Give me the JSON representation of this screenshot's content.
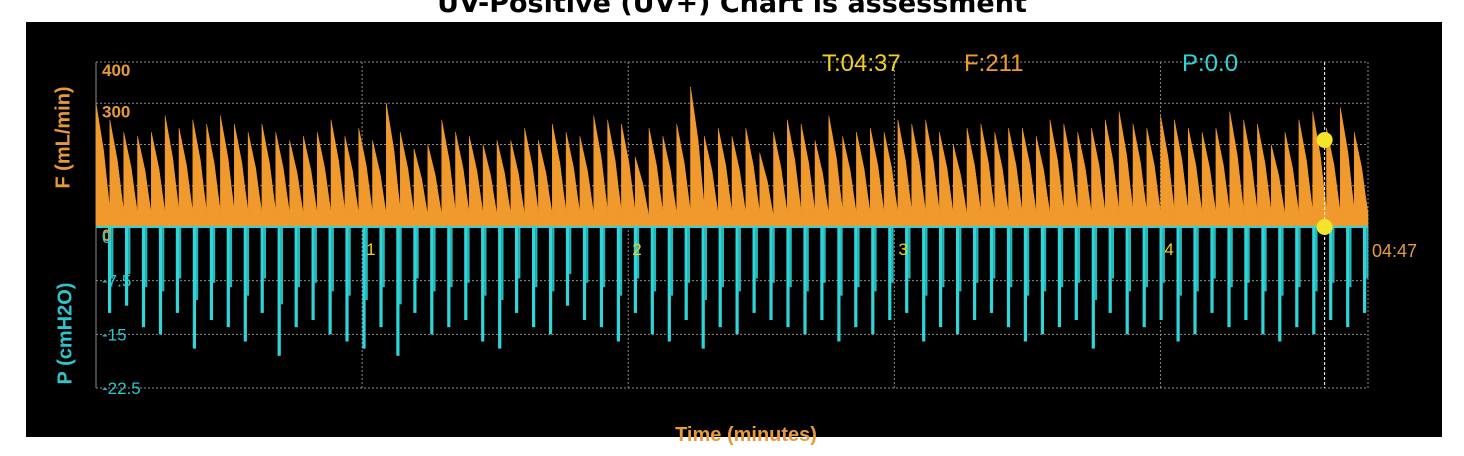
{
  "title": "UV-Positive (UV+) Chart is assessment",
  "readouts": {
    "time": "T:04:37",
    "flow": "F:211",
    "pressure": "P:0.0"
  },
  "colors": {
    "background": "#000000",
    "flow": "#f09a2e",
    "pressure": "#2fd6d9",
    "grid": "#8a8a8a",
    "flow_label": "#e79a3a",
    "pressure_label": "#2bc7cc",
    "time_readout": "#f2d021",
    "cursor": "#f5e52a"
  },
  "chart_data": {
    "type": "area",
    "xlabel": "Time (minutes)",
    "x_ticks": [
      "0",
      "1",
      "2",
      "3",
      "4"
    ],
    "x_end_label": "04:47",
    "xlim": [
      0,
      4.78
    ],
    "cursor_time_min": 4.617,
    "cursor_values": {
      "flow": 211,
      "pressure": 0.0
    },
    "series": [
      {
        "name": "F (mL/min)",
        "ylabel": "F (mL/min)",
        "ylim": [
          0,
          400
        ],
        "y_ticks": [
          "400",
          "300",
          "0"
        ],
        "y_tick_values": [
          400,
          300,
          0
        ],
        "breath_peaks": [
          300,
          260,
          230,
          220,
          230,
          270,
          240,
          260,
          250,
          270,
          250,
          230,
          250,
          230,
          210,
          220,
          230,
          260,
          220,
          240,
          210,
          300,
          230,
          190,
          200,
          260,
          230,
          220,
          200,
          210,
          210,
          240,
          210,
          250,
          230,
          220,
          270,
          260,
          250,
          170,
          240,
          220,
          250,
          340,
          220,
          240,
          220,
          240,
          180,
          230,
          260,
          250,
          210,
          270,
          220,
          230,
          240,
          230,
          260,
          250,
          260,
          230,
          200,
          240,
          250,
          230,
          240,
          240,
          220,
          260,
          250,
          230,
          240,
          260,
          280,
          250,
          240,
          270,
          260,
          240,
          230,
          240,
          280,
          260,
          250,
          200,
          230,
          260,
          280,
          240,
          290,
          230
        ]
      },
      {
        "name": "P (cmH2O)",
        "ylabel": "P (cmH2O)",
        "ylim": [
          -22.5,
          0
        ],
        "y_ticks": [
          "0",
          "-7.5",
          "-15",
          "-22.5"
        ],
        "y_tick_values": [
          0,
          -7.5,
          -15,
          -22.5
        ],
        "breath_troughs": [
          -12,
          -11,
          -14,
          -15,
          -12,
          -17,
          -13,
          -14,
          -16,
          -12,
          -18,
          -14,
          -13,
          -15,
          -16,
          -17,
          -14,
          -18,
          -12,
          -15,
          -14,
          -13,
          -16,
          -17,
          -12,
          -14,
          -15,
          -11,
          -13,
          -14,
          -16,
          -12,
          -15,
          -16,
          -13,
          -17,
          -14,
          -15,
          -12,
          -13,
          -14,
          -15,
          -13,
          -16,
          -14,
          -15,
          -13,
          -12,
          -16,
          -14,
          -15,
          -13,
          -12,
          -14,
          -16,
          -15,
          -14,
          -13,
          -17,
          -12,
          -15,
          -14,
          -13,
          -16,
          -15,
          -12,
          -14,
          -13,
          -15,
          -16,
          -14,
          -15,
          -13,
          -14,
          -12
        ]
      }
    ],
    "grid": true
  }
}
